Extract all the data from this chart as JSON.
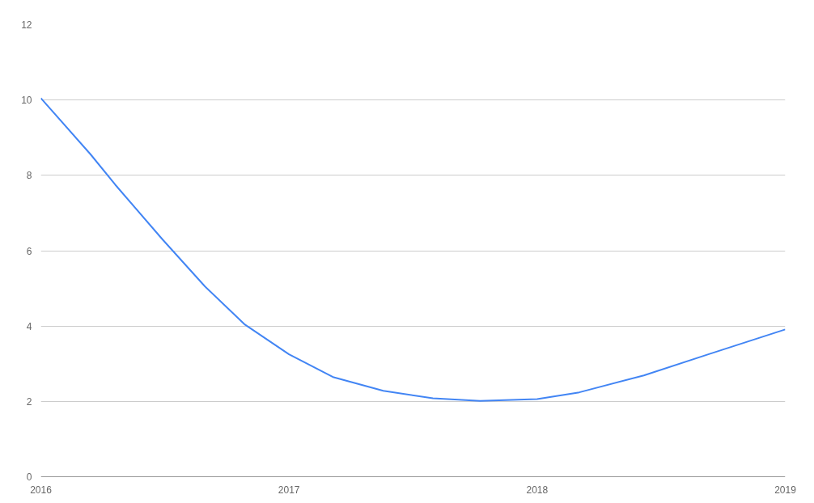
{
  "chart_data": {
    "type": "line",
    "x": [
      2016,
      2016.2,
      2016.3,
      2016.49,
      2016.66,
      2016.82,
      2017,
      2017.18,
      2017.38,
      2017.58,
      2017.77,
      2018,
      2018.17,
      2018.43,
      2018.69,
      2019
    ],
    "series": [
      {
        "color": "#4285f4",
        "values": [
          10.05,
          8.56,
          7.75,
          6.3,
          5.06,
          4.05,
          3.25,
          2.64,
          2.28,
          2.08,
          2.01,
          2.06,
          2.24,
          2.69,
          3.25,
          3.91
        ]
      }
    ],
    "xlim": [
      2016,
      2019
    ],
    "xticks": [
      2016,
      2017,
      2018,
      2019
    ],
    "ylim": [
      0,
      12
    ],
    "yticks": [
      0,
      2,
      4,
      6,
      8,
      10,
      12
    ],
    "grid": "y",
    "marker": "none",
    "line_style": "solid"
  }
}
